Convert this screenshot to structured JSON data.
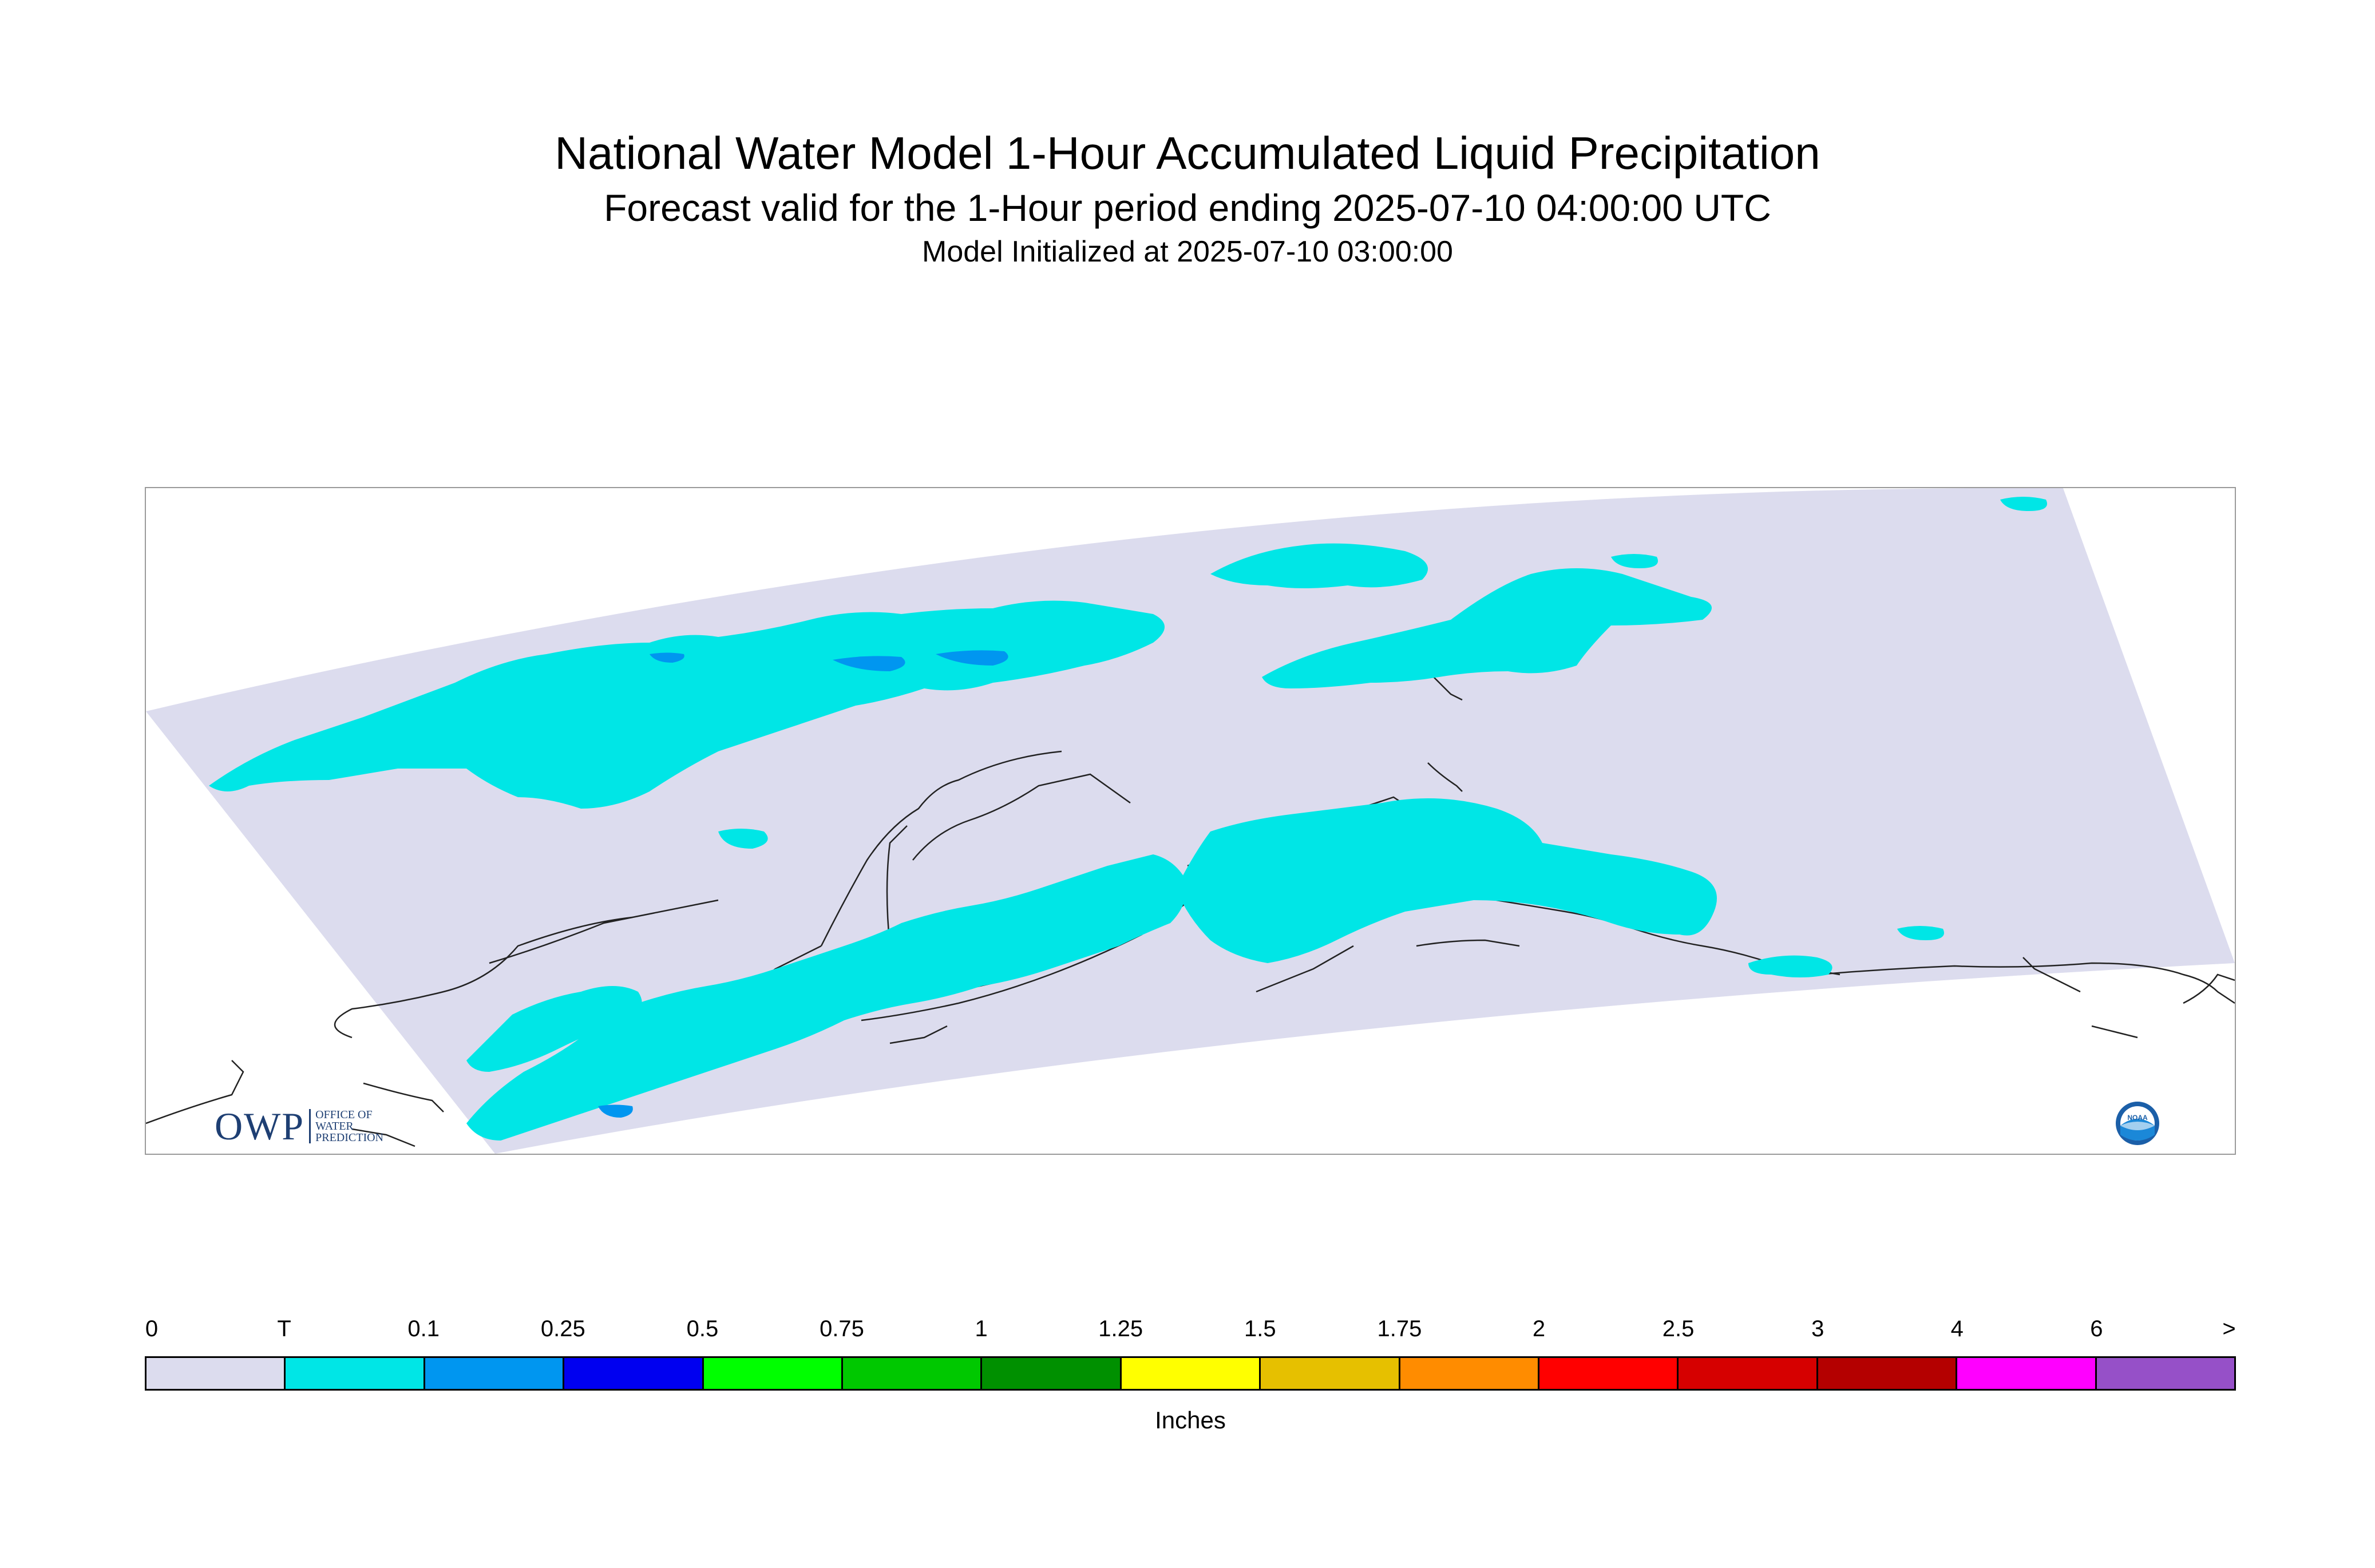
{
  "title": {
    "main": "National Water Model 1-Hour Accumulated Liquid Precipitation",
    "subtitle": "Forecast valid for the 1-Hour period ending 2025-07-10 04:00:00 UTC",
    "init": "Model Initialized at 2025-07-10 03:00:00"
  },
  "map": {
    "domain_color": "#dcdcee",
    "precip_color": "#00e6e6",
    "heavier_color": "#0096f0",
    "coastline_color": "#222222"
  },
  "logos": {
    "owp": {
      "letters": "OWP",
      "line1": "OFFICE OF",
      "line2": "WATER",
      "line3": "PREDICTION"
    },
    "noaa": {
      "text": "NOAA"
    }
  },
  "legend": {
    "tick_labels": [
      "0",
      "T",
      "0.1",
      "0.25",
      "0.5",
      "0.75",
      "1",
      "1.25",
      "1.5",
      "1.75",
      "2",
      "2.5",
      "3",
      "4",
      "6",
      ">"
    ],
    "colors": [
      "#dcdcee",
      "#00e6e6",
      "#0096f0",
      "#0000f0",
      "#00ff00",
      "#00c800",
      "#009000",
      "#ffff00",
      "#e6c000",
      "#ff8c00",
      "#ff0000",
      "#d60000",
      "#b40000",
      "#ff00ff",
      "#9650c8"
    ],
    "units": "Inches"
  }
}
